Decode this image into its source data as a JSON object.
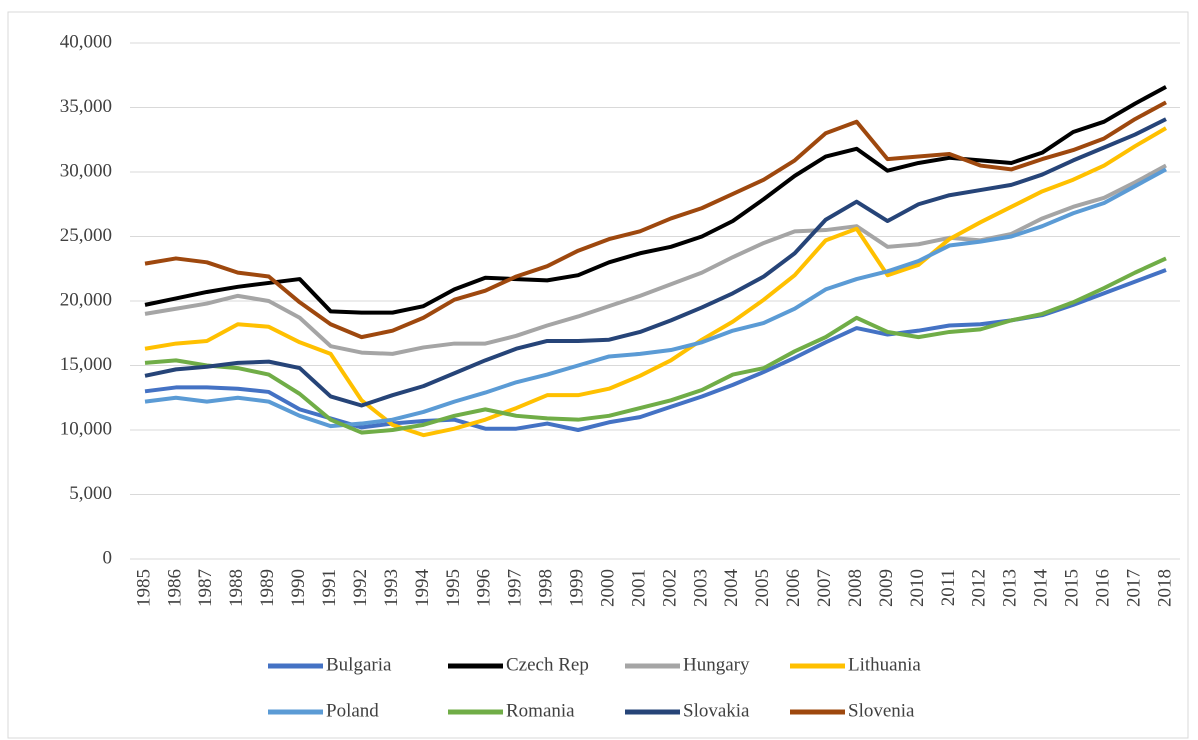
{
  "chart_data": {
    "type": "line",
    "categories": [
      "1985",
      "1986",
      "1987",
      "1988",
      "1989",
      "1990",
      "1991",
      "1992",
      "1993",
      "1994",
      "1995",
      "1996",
      "1997",
      "1998",
      "1999",
      "2000",
      "2001",
      "2002",
      "2003",
      "2004",
      "2005",
      "2006",
      "2007",
      "2008",
      "2009",
      "2010",
      "2011",
      "2012",
      "2013",
      "2014",
      "2015",
      "2016",
      "2017",
      "2018"
    ],
    "series": [
      {
        "name": "Bulgaria",
        "color": "#4472c4",
        "values": [
          13000,
          13300,
          13300,
          13200,
          12950,
          11600,
          10900,
          10200,
          10500,
          10700,
          10800,
          10100,
          10100,
          10500,
          10000,
          10600,
          11000,
          11800,
          12600,
          13500,
          14500,
          15600,
          16800,
          17900,
          17400,
          17700,
          18100,
          18200,
          18500,
          18900,
          19700,
          20600,
          21500,
          22400
        ]
      },
      {
        "name": "Czech Rep",
        "color": "#000000",
        "values": [
          19700,
          20200,
          20700,
          21100,
          21400,
          21700,
          19200,
          19100,
          19100,
          19600,
          20900,
          21800,
          21700,
          21600,
          22000,
          23000,
          23700,
          24200,
          25000,
          26200,
          27900,
          29700,
          31200,
          31800,
          30100,
          30700,
          31100,
          30900,
          30700,
          31500,
          33100,
          33900,
          35300,
          36600
        ]
      },
      {
        "name": "Hungary",
        "color": "#a5a5a5",
        "values": [
          19000,
          19400,
          19800,
          20400,
          20000,
          18700,
          16500,
          16000,
          15900,
          16400,
          16700,
          16700,
          17300,
          18100,
          18800,
          19600,
          20400,
          21300,
          22200,
          23400,
          24500,
          25400,
          25500,
          25800,
          24200,
          24400,
          24900,
          24700,
          25200,
          26400,
          27300,
          28000,
          29200,
          30500
        ]
      },
      {
        "name": "Lithuania",
        "color": "#ffc000",
        "values": [
          16300,
          16700,
          16900,
          18200,
          18000,
          16800,
          15900,
          12300,
          10400,
          9600,
          10100,
          10800,
          11700,
          12700,
          12700,
          13200,
          14200,
          15400,
          17000,
          18400,
          20100,
          22000,
          24700,
          25600,
          22000,
          22800,
          24800,
          26100,
          27300,
          28500,
          29400,
          30500,
          32000,
          33400
        ]
      },
      {
        "name": "Poland",
        "color": "#5b9bd5",
        "values": [
          12200,
          12500,
          12200,
          12500,
          12200,
          11100,
          10300,
          10500,
          10800,
          11400,
          12200,
          12900,
          13700,
          14300,
          15000,
          15700,
          15900,
          16200,
          16800,
          17700,
          18300,
          19400,
          20900,
          21700,
          22300,
          23100,
          24300,
          24600,
          25000,
          25800,
          26800,
          27600,
          28900,
          30200
        ]
      },
      {
        "name": "Romania",
        "color": "#70ad47",
        "values": [
          15200,
          15400,
          15000,
          14800,
          14300,
          12800,
          10800,
          9800,
          10000,
          10400,
          11100,
          11600,
          11100,
          10900,
          10800,
          11100,
          11700,
          12300,
          13100,
          14300,
          14800,
          16100,
          17200,
          18700,
          17600,
          17200,
          17600,
          17800,
          18500,
          19000,
          19900,
          21000,
          22200,
          23300
        ]
      },
      {
        "name": "Slovakia",
        "color": "#264478",
        "values": [
          14200,
          14700,
          14900,
          15200,
          15300,
          14800,
          12600,
          11900,
          12700,
          13400,
          14400,
          15400,
          16300,
          16900,
          16900,
          17000,
          17600,
          18500,
          19500,
          20600,
          21900,
          23700,
          26300,
          27700,
          26200,
          27500,
          28200,
          28600,
          29000,
          29800,
          30900,
          31900,
          32900,
          34100
        ]
      },
      {
        "name": "Slovenia",
        "color": "#9e480e",
        "values": [
          22900,
          23300,
          23000,
          22200,
          21900,
          19900,
          18200,
          17200,
          17700,
          18700,
          20100,
          20800,
          21900,
          22700,
          23900,
          24800,
          25400,
          26400,
          27200,
          28300,
          29400,
          30900,
          33000,
          33900,
          31000,
          31200,
          31400,
          30500,
          30200,
          31000,
          31700,
          32600,
          34100,
          35400
        ]
      }
    ],
    "ylim": [
      0,
      40000
    ],
    "yticks": [
      0,
      {
        "value": 5000,
        "label": "5,000"
      },
      {
        "value": 10000,
        "label": "10,000"
      },
      {
        "value": 15000,
        "label": "15,000"
      },
      {
        "value": 20000,
        "label": "20,000"
      },
      {
        "value": 25000,
        "label": "25,000"
      },
      {
        "value": 30000,
        "label": "30,000"
      },
      {
        "value": 35000,
        "label": "35,000"
      },
      {
        "value": 40000,
        "label": "40,000"
      }
    ],
    "grid": true,
    "legend": "bottom"
  }
}
